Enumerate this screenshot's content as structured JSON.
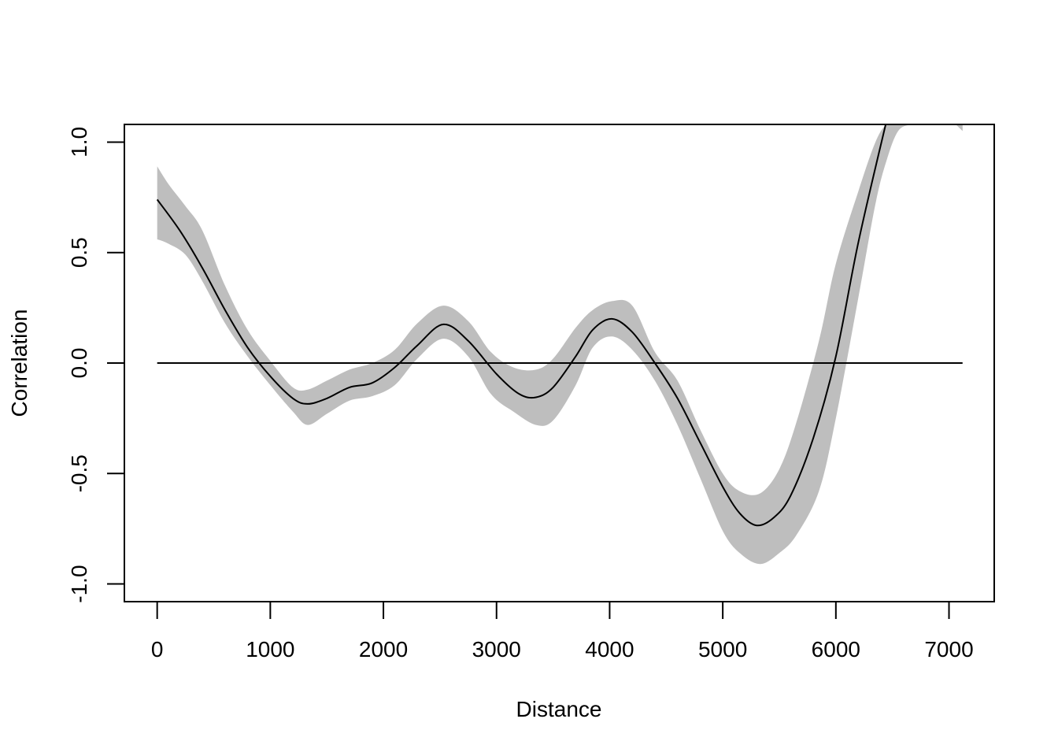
{
  "chart_data": {
    "type": "line",
    "title": "",
    "xlabel": "Distance",
    "ylabel": "Correlation",
    "xlim": [
      -290,
      7400
    ],
    "ylim": [
      -1.08,
      1.08
    ],
    "xticks": [
      0,
      1000,
      2000,
      3000,
      4000,
      5000,
      6000,
      7000
    ],
    "xtick_labels": [
      "0",
      "1000",
      "2000",
      "3000",
      "4000",
      "5000",
      "6000",
      "7000"
    ],
    "yticks": [
      -1.0,
      -0.5,
      0.0,
      0.5,
      1.0
    ],
    "ytick_labels": [
      "-1.0",
      "-0.5",
      "0.0",
      "0.5",
      "1.0"
    ],
    "grid": false,
    "reference_line": {
      "y": 0,
      "x_from": 0,
      "x_to": 7120
    },
    "colors": {
      "line": "#000000",
      "band": "#bebebe",
      "frame": "#000000"
    },
    "series": [
      {
        "values_x": [
          0,
          200,
          400,
          600,
          800,
          1000,
          1200,
          1330,
          1500,
          1700,
          1900,
          2100,
          2300,
          2530,
          2750,
          3000,
          3200,
          3350,
          3500,
          3700,
          3850,
          4020,
          4200,
          4400,
          4600,
          4800,
          5000,
          5150,
          5300,
          5450,
          5600,
          5800,
          6000,
          6200,
          6440
        ],
        "values_y": [
          0.74,
          0.6,
          0.43,
          0.24,
          0.07,
          -0.06,
          -0.16,
          -0.185,
          -0.16,
          -0.11,
          -0.09,
          -0.02,
          0.08,
          0.175,
          0.1,
          -0.05,
          -0.14,
          -0.155,
          -0.11,
          0.03,
          0.15,
          0.2,
          0.14,
          0.0,
          -0.16,
          -0.36,
          -0.56,
          -0.68,
          -0.735,
          -0.7,
          -0.6,
          -0.34,
          0.03,
          0.55,
          1.08
        ]
      }
    ],
    "confidence_band": {
      "x": [
        0,
        100,
        250,
        400,
        600,
        800,
        1000,
        1200,
        1330,
        1500,
        1700,
        1900,
        2100,
        2300,
        2530,
        2750,
        2950,
        3150,
        3350,
        3500,
        3700,
        3850,
        4020,
        4200,
        4400,
        4600,
        4800,
        5000,
        5150,
        5330,
        5500,
        5650,
        5850,
        6000,
        6200,
        6350,
        6450,
        6550,
        6660
      ],
      "lower": [
        0.56,
        0.54,
        0.49,
        0.37,
        0.18,
        0.03,
        -0.1,
        -0.22,
        -0.28,
        -0.23,
        -0.17,
        -0.15,
        -0.1,
        0.02,
        0.11,
        0.03,
        -0.14,
        -0.22,
        -0.28,
        -0.26,
        -0.1,
        0.07,
        0.12,
        0.06,
        -0.08,
        -0.28,
        -0.52,
        -0.76,
        -0.86,
        -0.91,
        -0.86,
        -0.78,
        -0.58,
        -0.25,
        0.3,
        0.72,
        0.92,
        1.05,
        1.08
      ],
      "upper": [
        0.89,
        0.81,
        0.71,
        0.6,
        0.35,
        0.15,
        0.01,
        -0.11,
        -0.12,
        -0.08,
        -0.03,
        0.0,
        0.06,
        0.18,
        0.26,
        0.19,
        0.05,
        -0.02,
        -0.03,
        0.02,
        0.16,
        0.24,
        0.28,
        0.26,
        0.05,
        -0.08,
        -0.3,
        -0.5,
        -0.58,
        -0.59,
        -0.48,
        -0.27,
        0.1,
        0.45,
        0.78,
        1.0,
        1.08,
        1.08,
        1.08
      ]
    },
    "band_fragment": {
      "x": [
        7060,
        7120,
        7120
      ],
      "y": [
        1.08,
        1.08,
        1.05
      ]
    }
  }
}
